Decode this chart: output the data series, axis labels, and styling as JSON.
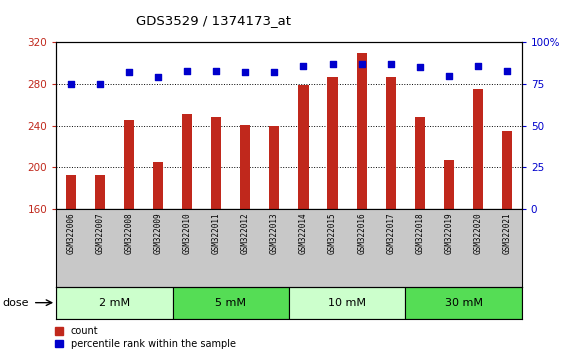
{
  "title": "GDS3529 / 1374173_at",
  "samples": [
    "GSM322006",
    "GSM322007",
    "GSM322008",
    "GSM322009",
    "GSM322010",
    "GSM322011",
    "GSM322012",
    "GSM322013",
    "GSM322014",
    "GSM322015",
    "GSM322016",
    "GSM322017",
    "GSM322018",
    "GSM322019",
    "GSM322020",
    "GSM322021"
  ],
  "counts": [
    193,
    193,
    245,
    205,
    251,
    248,
    241,
    240,
    279,
    287,
    310,
    287,
    248,
    207,
    275,
    235
  ],
  "percentiles": [
    75,
    75,
    82,
    79,
    83,
    83,
    82,
    82,
    86,
    87,
    87,
    87,
    85,
    80,
    86,
    83
  ],
  "ylim_left": [
    160,
    320
  ],
  "ylim_right": [
    0,
    100
  ],
  "yticks_left": [
    160,
    200,
    240,
    280,
    320
  ],
  "yticks_right": [
    0,
    25,
    50,
    75,
    100
  ],
  "ytick_labels_right": [
    "0",
    "25",
    "50",
    "75",
    "100%"
  ],
  "bar_color": "#C0281C",
  "dot_color": "#0000CC",
  "dose_groups": [
    {
      "label": "2 mM",
      "start": 0,
      "end": 4,
      "color_light": "#CCFFCC",
      "color_dark": "#66DD66"
    },
    {
      "label": "5 mM",
      "start": 4,
      "end": 8,
      "color_light": "#66DD66",
      "color_dark": "#CCFFCC"
    },
    {
      "label": "10 mM",
      "start": 8,
      "end": 12,
      "color_light": "#CCFFCC",
      "color_dark": "#66DD66"
    },
    {
      "label": "30 mM",
      "start": 12,
      "end": 16,
      "color_light": "#66DD66",
      "color_dark": "#CCFFCC"
    }
  ],
  "dose_colors": [
    "#CCFFCC",
    "#55DD55",
    "#CCFFCC",
    "#55DD55"
  ],
  "dose_label": "dose",
  "legend_count_label": "count",
  "legend_pct_label": "percentile rank within the sample",
  "plot_bg_color": "#FFFFFF",
  "label_bg_color": "#C8C8C8",
  "n_samples": 16
}
